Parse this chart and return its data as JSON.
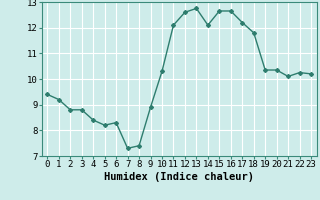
{
  "x": [
    0,
    1,
    2,
    3,
    4,
    5,
    6,
    7,
    8,
    9,
    10,
    11,
    12,
    13,
    14,
    15,
    16,
    17,
    18,
    19,
    20,
    21,
    22,
    23
  ],
  "y": [
    9.4,
    9.2,
    8.8,
    8.8,
    8.4,
    8.2,
    8.3,
    7.3,
    7.4,
    8.9,
    10.3,
    12.1,
    12.6,
    12.75,
    12.1,
    12.65,
    12.65,
    12.2,
    11.8,
    10.35,
    10.35,
    10.1,
    10.25,
    10.2
  ],
  "line_color": "#2e7d6e",
  "marker": "D",
  "marker_size": 2.0,
  "bg_color": "#ceecea",
  "grid_color": "#ffffff",
  "xlabel": "Humidex (Indice chaleur)",
  "ylim": [
    7,
    13
  ],
  "xlim": [
    -0.5,
    23.5
  ],
  "yticks": [
    7,
    8,
    9,
    10,
    11,
    12,
    13
  ],
  "xticks": [
    0,
    1,
    2,
    3,
    4,
    5,
    6,
    7,
    8,
    9,
    10,
    11,
    12,
    13,
    14,
    15,
    16,
    17,
    18,
    19,
    20,
    21,
    22,
    23
  ],
  "xlabel_fontsize": 7.5,
  "tick_fontsize": 6.5,
  "line_width": 1.0
}
